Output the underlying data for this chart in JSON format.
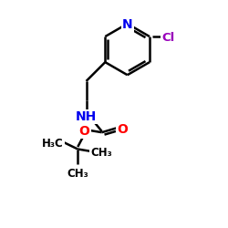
{
  "background_color": "#ffffff",
  "bond_color": "#000000",
  "N_color": "#0000ee",
  "O_color": "#ff0000",
  "Cl_color": "#9900bb",
  "linewidth": 1.8,
  "figsize": [
    2.5,
    2.5
  ],
  "dpi": 100,
  "xlim": [
    0,
    10
  ],
  "ylim": [
    0,
    10
  ]
}
